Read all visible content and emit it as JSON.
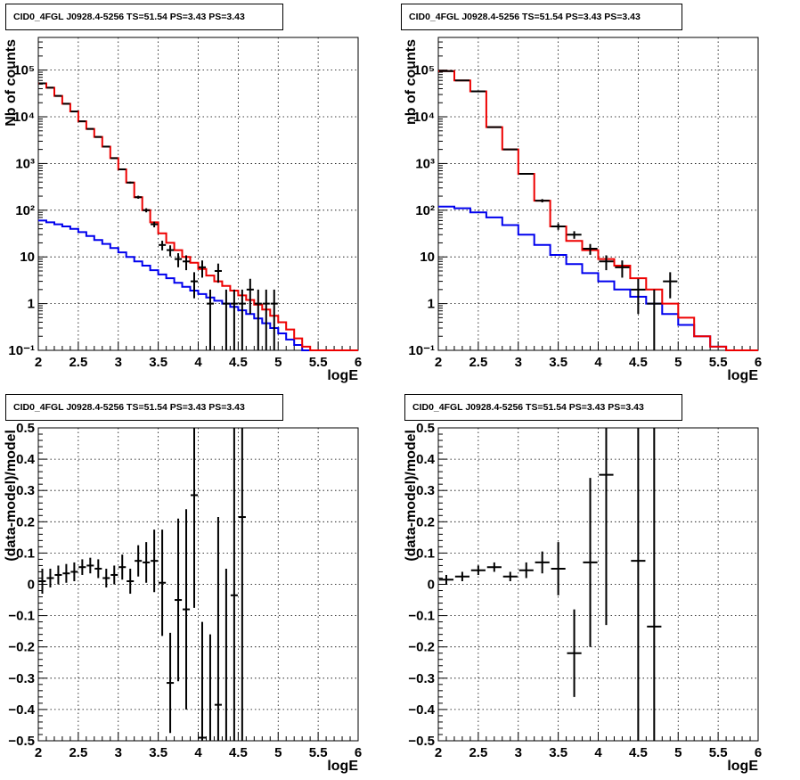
{
  "chart_data": [
    {
      "id": "top-left",
      "type": "line",
      "title": "CID0_4FGL J0928.4-5256 TS=51.54 PS=3.43 PS=3.43",
      "xlabel": "logE",
      "ylabel": "Nb of counts",
      "yscale": "log",
      "xlim": [
        2,
        6
      ],
      "ylim": [
        0.1,
        500000
      ],
      "grid": true,
      "xticks": [
        2,
        2.5,
        3,
        3.5,
        4,
        4.5,
        5,
        5.5,
        6
      ],
      "xtick_labels": [
        "2",
        "2.5",
        "3",
        "3.5",
        "4",
        "4.5",
        "5",
        "5.5",
        "6"
      ],
      "yticks": [
        0.1,
        1,
        10,
        100,
        1000,
        10000,
        100000
      ],
      "ytick_labels": [
        "10⁻¹",
        "1",
        "10",
        "10²",
        "10³",
        "10⁴",
        "10⁵"
      ],
      "bin_edges": [
        2.0,
        2.1,
        2.2,
        2.3,
        2.4,
        2.5,
        2.6,
        2.7,
        2.8,
        2.9,
        3.0,
        3.1,
        3.2,
        3.3,
        3.4,
        3.5,
        3.6,
        3.7,
        3.8,
        3.9,
        4.0,
        4.1,
        4.2,
        4.3,
        4.4,
        4.5,
        4.6,
        4.7,
        4.8,
        4.9,
        5.0,
        5.1,
        5.2,
        5.3,
        5.4,
        5.5,
        5.6,
        5.7,
        5.8,
        5.9,
        6.0
      ],
      "series": [
        {
          "name": "",
          "style": "step",
          "color": "#0000ee",
          "values": [
            60,
            55,
            50,
            45,
            40,
            34,
            28,
            23,
            19,
            15.5,
            12.5,
            10,
            8,
            6.5,
            5.2,
            4.2,
            3.5,
            2.8,
            2.3,
            1.9,
            1.6,
            1.35,
            1.15,
            1.0,
            0.85,
            0.72,
            0.6,
            0.48,
            0.38,
            0.3,
            0.23,
            0.17,
            0.13,
            0.1,
            0.1,
            0.1,
            0.1,
            0.1,
            0.1,
            0.1
          ]
        },
        {
          "name": "",
          "style": "step",
          "color": "#ee0000",
          "values": [
            52000,
            42000,
            28000,
            19000,
            13000,
            8000,
            5500,
            3700,
            2300,
            1300,
            750,
            390,
            190,
            100,
            55,
            32,
            20,
            14,
            10,
            7.5,
            5.5,
            4.0,
            3.0,
            2.4,
            1.9,
            1.5,
            1.2,
            0.95,
            0.75,
            0.55,
            0.4,
            0.28,
            0.18,
            0.12,
            0.1,
            0.1,
            0.1,
            0.1,
            0.1,
            0.1
          ]
        },
        {
          "name": "",
          "style": "points",
          "color": "#000000",
          "x": [
            2.05,
            2.15,
            2.25,
            2.35,
            2.45,
            2.55,
            2.65,
            2.75,
            2.85,
            2.95,
            3.05,
            3.15,
            3.25,
            3.35,
            3.45,
            3.55,
            3.65,
            3.75,
            3.85,
            3.95,
            4.05,
            4.15,
            4.25,
            4.35,
            4.45,
            4.55,
            4.65,
            4.75,
            4.85,
            4.95
          ],
          "y": [
            52000,
            42000,
            28000,
            19000,
            13000,
            8000,
            5500,
            3700,
            2300,
            1300,
            750,
            390,
            190,
            100,
            50,
            18,
            14,
            9,
            8,
            3,
            6,
            1,
            5,
            1,
            1,
            1,
            2,
            1,
            1,
            1
          ],
          "yerr_low": [
            228,
            205,
            167,
            138,
            114,
            89,
            74,
            61,
            48,
            36,
            27,
            20,
            14,
            10,
            7,
            4.2,
            3.7,
            3,
            2.8,
            1.7,
            2.4,
            1,
            2.2,
            1,
            1,
            1,
            1.4,
            1,
            1,
            1
          ],
          "yerr_high": [
            228,
            205,
            167,
            138,
            114,
            89,
            74,
            61,
            48,
            36,
            27,
            20,
            14,
            10,
            7,
            4.2,
            3.7,
            3,
            2.8,
            1.7,
            2.4,
            1,
            2.2,
            1,
            1,
            1,
            1.4,
            1,
            1,
            1
          ]
        }
      ]
    },
    {
      "id": "top-right",
      "type": "line",
      "title": "CID0_4FGL J0928.4-5256 TS=51.54 PS=3.43 PS=3.43",
      "xlabel": "logE",
      "ylabel": "nb of counts",
      "yscale": "log",
      "xlim": [
        2,
        6
      ],
      "ylim": [
        0.1,
        500000
      ],
      "grid": true,
      "xticks": [
        2,
        2.5,
        3,
        3.5,
        4,
        4.5,
        5,
        5.5,
        6
      ],
      "xtick_labels": [
        "2",
        "2.5",
        "3",
        "3.5",
        "4",
        "4.5",
        "5",
        "5.5",
        "6"
      ],
      "yticks": [
        0.1,
        1,
        10,
        100,
        1000,
        10000,
        100000
      ],
      "ytick_labels": [
        "10⁻¹",
        "1",
        "10",
        "10²",
        "10³",
        "10⁴",
        "10⁵"
      ],
      "bin_edges": [
        2.0,
        2.2,
        2.4,
        2.6,
        2.8,
        3.0,
        3.2,
        3.4,
        3.6,
        3.8,
        4.0,
        4.2,
        4.4,
        4.6,
        4.8,
        5.0,
        5.2,
        5.4,
        5.6,
        5.8,
        6.0
      ],
      "series": [
        {
          "name": "",
          "style": "step",
          "color": "#0000ee",
          "values": [
            120,
            110,
            90,
            70,
            48,
            30,
            18,
            11,
            7,
            4.5,
            3,
            2,
            1.4,
            1,
            0.6,
            0.35,
            0.2,
            0.12,
            0.1,
            0.1
          ]
        },
        {
          "name": "",
          "style": "step",
          "color": "#ee0000",
          "values": [
            95000,
            60000,
            35000,
            6000,
            2000,
            600,
            160,
            45,
            22,
            14,
            9,
            6.5,
            3.5,
            2,
            1,
            0.5,
            0.2,
            0.12,
            0.1,
            0.1
          ]
        },
        {
          "name": "",
          "style": "points",
          "color": "#000000",
          "x": [
            2.1,
            2.3,
            2.5,
            2.7,
            2.9,
            3.1,
            3.3,
            3.5,
            3.7,
            3.9,
            4.1,
            4.3,
            4.5,
            4.7,
            4.9
          ],
          "y": [
            95000,
            60000,
            35000,
            6000,
            2000,
            600,
            160,
            45,
            30,
            15,
            8,
            6,
            2,
            1,
            3
          ],
          "yerr_low": [
            308,
            245,
            187,
            77,
            45,
            24,
            13,
            7,
            5.5,
            3.9,
            2.8,
            2.4,
            1.4,
            1,
            1.7
          ],
          "yerr_high": [
            308,
            245,
            187,
            77,
            45,
            24,
            13,
            7,
            5.5,
            3.9,
            2.8,
            2.4,
            1.4,
            1,
            1.7
          ]
        }
      ]
    },
    {
      "id": "bottom-left",
      "type": "scatter",
      "title": "CID0_4FGL J0928.4-5256 TS=51.54 PS=3.43 PS=3.43",
      "xlabel": "logE",
      "ylabel": "(data-model)/model",
      "yscale": "linear",
      "xlim": [
        2,
        6
      ],
      "ylim": [
        -0.5,
        0.5
      ],
      "grid": true,
      "xticks": [
        2,
        2.5,
        3,
        3.5,
        4,
        4.5,
        5,
        5.5,
        6
      ],
      "xtick_labels": [
        "2",
        "2.5",
        "3",
        "3.5",
        "4",
        "4.5",
        "5",
        "5.5",
        "6"
      ],
      "yticks": [
        -0.5,
        -0.4,
        -0.3,
        -0.2,
        -0.1,
        0,
        0.1,
        0.2,
        0.3,
        0.4,
        0.5
      ],
      "ytick_labels": [
        "−0.5",
        "−0.4",
        "−0.3",
        "−0.2",
        "−0.1",
        "0",
        "0.1",
        "0.2",
        "0.3",
        "0.4",
        "0.5"
      ],
      "series": [
        {
          "name": "",
          "color": "#000000",
          "x": [
            2.05,
            2.15,
            2.25,
            2.35,
            2.45,
            2.55,
            2.65,
            2.75,
            2.85,
            2.95,
            3.05,
            3.15,
            3.25,
            3.35,
            3.45,
            3.55,
            3.65,
            3.75,
            3.85,
            3.95,
            4.05,
            4.15,
            4.25,
            4.35,
            4.45,
            4.55
          ],
          "y": [
            0.01,
            0.02,
            0.03,
            0.035,
            0.04,
            0.055,
            0.06,
            0.05,
            0.02,
            0.03,
            0.055,
            0.01,
            0.075,
            0.07,
            0.075,
            0.005,
            -0.315,
            -0.05,
            -0.08,
            0.285,
            -0.49,
            -0.52,
            -0.385,
            -0.55,
            -0.035,
            0.215
          ],
          "yerr": [
            0.04,
            0.03,
            0.03,
            0.03,
            0.03,
            0.025,
            0.025,
            0.03,
            0.03,
            0.03,
            0.04,
            0.04,
            0.05,
            0.065,
            0.1,
            0.17,
            0.16,
            0.26,
            0.32,
            0.36,
            0.37,
            0.36,
            0.6,
            0.6,
            0.7,
            0.75
          ]
        }
      ]
    },
    {
      "id": "bottom-right",
      "type": "scatter",
      "title": "CID0_4FGL J0928.4-5256 TS=51.54 PS=3.43 PS=3.43",
      "xlabel": "logE",
      "ylabel": "(data-model)/model",
      "yscale": "linear",
      "xlim": [
        2,
        6
      ],
      "ylim": [
        -0.5,
        0.5
      ],
      "grid": true,
      "xticks": [
        2,
        2.5,
        3,
        3.5,
        4,
        4.5,
        5,
        5.5,
        6
      ],
      "xtick_labels": [
        "2",
        "2.5",
        "3",
        "3.5",
        "4",
        "4.5",
        "5",
        "5.5",
        "6"
      ],
      "yticks": [
        -0.5,
        -0.4,
        -0.3,
        -0.2,
        -0.1,
        0,
        0.1,
        0.2,
        0.3,
        0.4,
        0.5
      ],
      "ytick_labels": [
        "−0.5",
        "−0.4",
        "−0.3",
        "−0.2",
        "−0.1",
        "0",
        "0.1",
        "0.2",
        "0.3",
        "0.4",
        "0.5"
      ],
      "series": [
        {
          "name": "",
          "color": "#000000",
          "x": [
            2.1,
            2.3,
            2.5,
            2.7,
            2.9,
            3.1,
            3.3,
            3.5,
            3.7,
            3.9,
            4.1,
            4.5,
            4.7
          ],
          "y": [
            0.015,
            0.025,
            0.045,
            0.055,
            0.025,
            0.045,
            0.07,
            0.05,
            -0.22,
            0.07,
            0.35,
            0.075,
            -0.135
          ],
          "yerr": [
            0.015,
            0.015,
            0.015,
            0.015,
            0.015,
            0.025,
            0.035,
            0.085,
            0.14,
            0.27,
            0.48,
            0.8,
            1.2
          ]
        }
      ]
    }
  ]
}
